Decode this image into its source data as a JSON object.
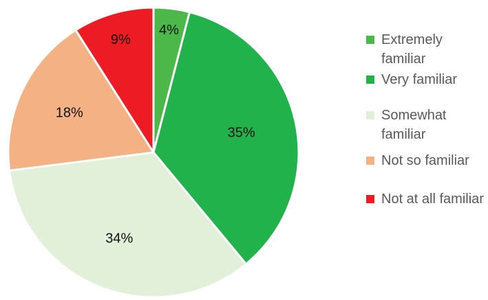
{
  "chart_data": {
    "type": "pie",
    "title": "",
    "categories": [
      "Extremely familiar",
      "Very familiar",
      "Somewhat familiar",
      "Not so familiar",
      "Not at all familiar"
    ],
    "values": [
      4,
      35,
      34,
      18,
      9
    ],
    "labels": [
      "4%",
      "35%",
      "34%",
      "18%",
      "9%"
    ],
    "colors": [
      "#4cb84a",
      "#22b24c",
      "#e2efd9",
      "#f4b183",
      "#ed1c24"
    ],
    "start_angle": "12 o'clock",
    "direction": "clockwise",
    "legend_position": "right"
  }
}
